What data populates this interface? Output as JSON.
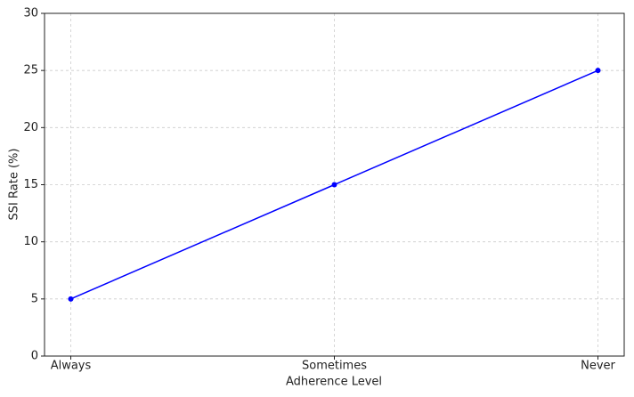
{
  "chart_data": {
    "type": "line",
    "categories": [
      "Always",
      "Sometimes",
      "Never"
    ],
    "values": [
      5,
      15,
      25
    ],
    "color": "#0000ff",
    "xlabel": "Adherence Level",
    "ylabel": "SSI Rate (%)",
    "ylim": [
      0,
      30
    ],
    "yticks": [
      0,
      5,
      10,
      15,
      20,
      25,
      30
    ],
    "grid": true
  }
}
